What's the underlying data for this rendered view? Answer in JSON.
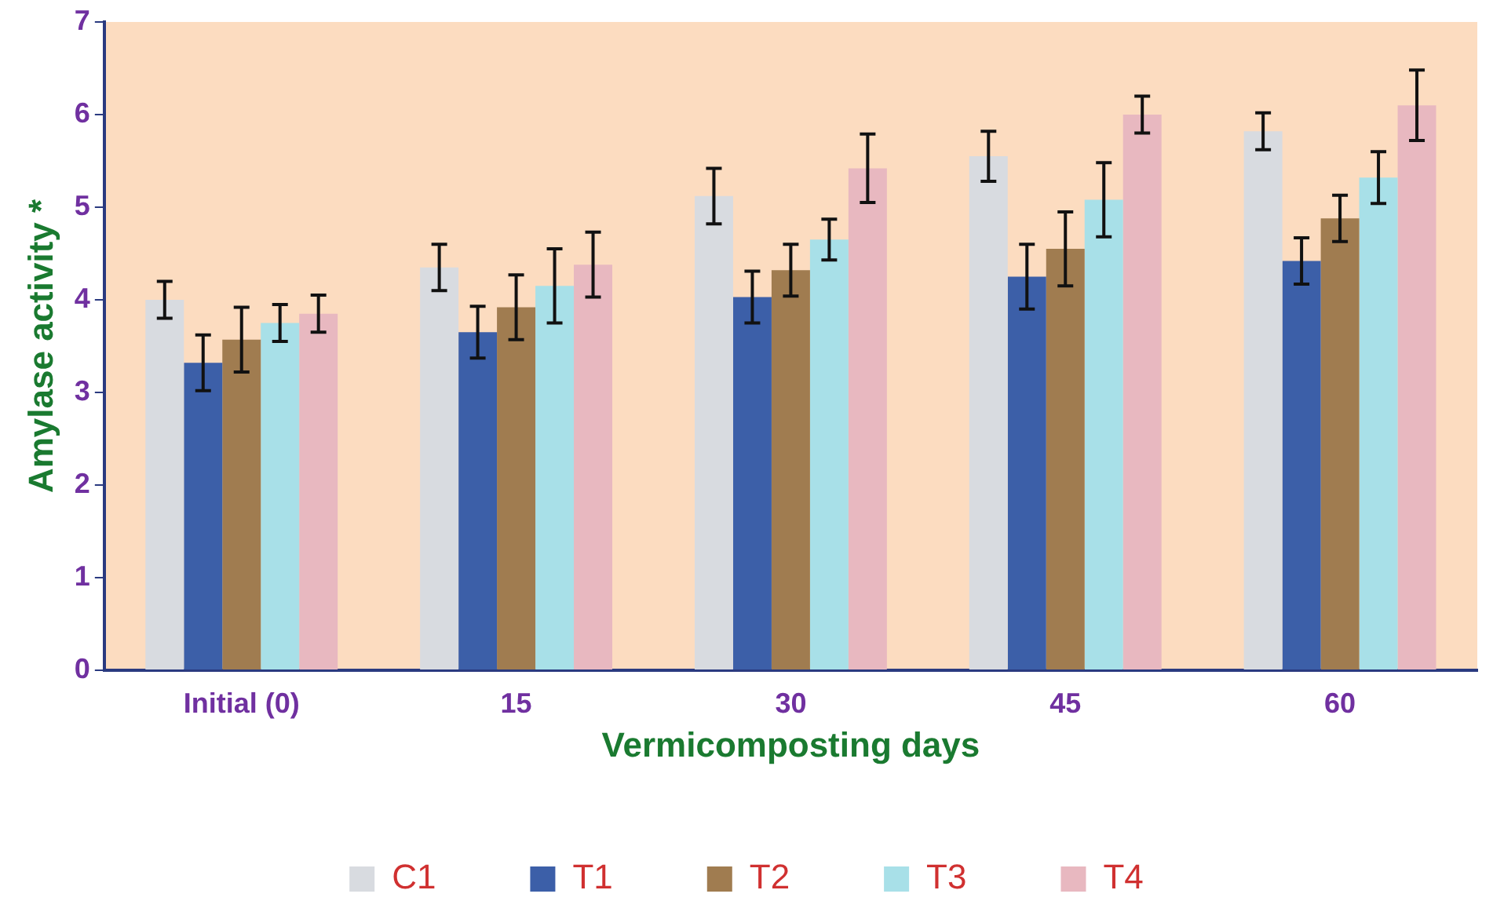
{
  "chart_data": {
    "type": "bar",
    "xlabel": "Vermicomposting days",
    "ylabel": "Amylase activity *",
    "categories": [
      "Initial (0)",
      "15",
      "30",
      "45",
      "60"
    ],
    "series": [
      {
        "name": "C1",
        "color": "#d8dbe0",
        "values": [
          4.0,
          4.35,
          5.12,
          5.55,
          5.82
        ],
        "errors": [
          0.2,
          0.25,
          0.3,
          0.27,
          0.2
        ]
      },
      {
        "name": "T1",
        "color": "#3c5fa8",
        "values": [
          3.32,
          3.65,
          4.03,
          4.25,
          4.42
        ],
        "errors": [
          0.3,
          0.28,
          0.28,
          0.35,
          0.25
        ]
      },
      {
        "name": "T2",
        "color": "#a07c50",
        "values": [
          3.57,
          3.92,
          4.32,
          4.55,
          4.88
        ],
        "errors": [
          0.35,
          0.35,
          0.28,
          0.4,
          0.25
        ]
      },
      {
        "name": "T3",
        "color": "#a8e0e8",
        "values": [
          3.75,
          4.15,
          4.65,
          5.08,
          5.32
        ],
        "errors": [
          0.2,
          0.4,
          0.22,
          0.4,
          0.28
        ]
      },
      {
        "name": "T4",
        "color": "#e8b8c0",
        "values": [
          3.85,
          4.38,
          5.42,
          6.0,
          6.1
        ],
        "errors": [
          0.2,
          0.35,
          0.37,
          0.2,
          0.38
        ]
      }
    ],
    "ylim": [
      0,
      7
    ],
    "yticks": [
      0,
      1,
      2,
      3,
      4,
      5,
      6,
      7
    ],
    "grid": false,
    "legend": "bottom"
  }
}
